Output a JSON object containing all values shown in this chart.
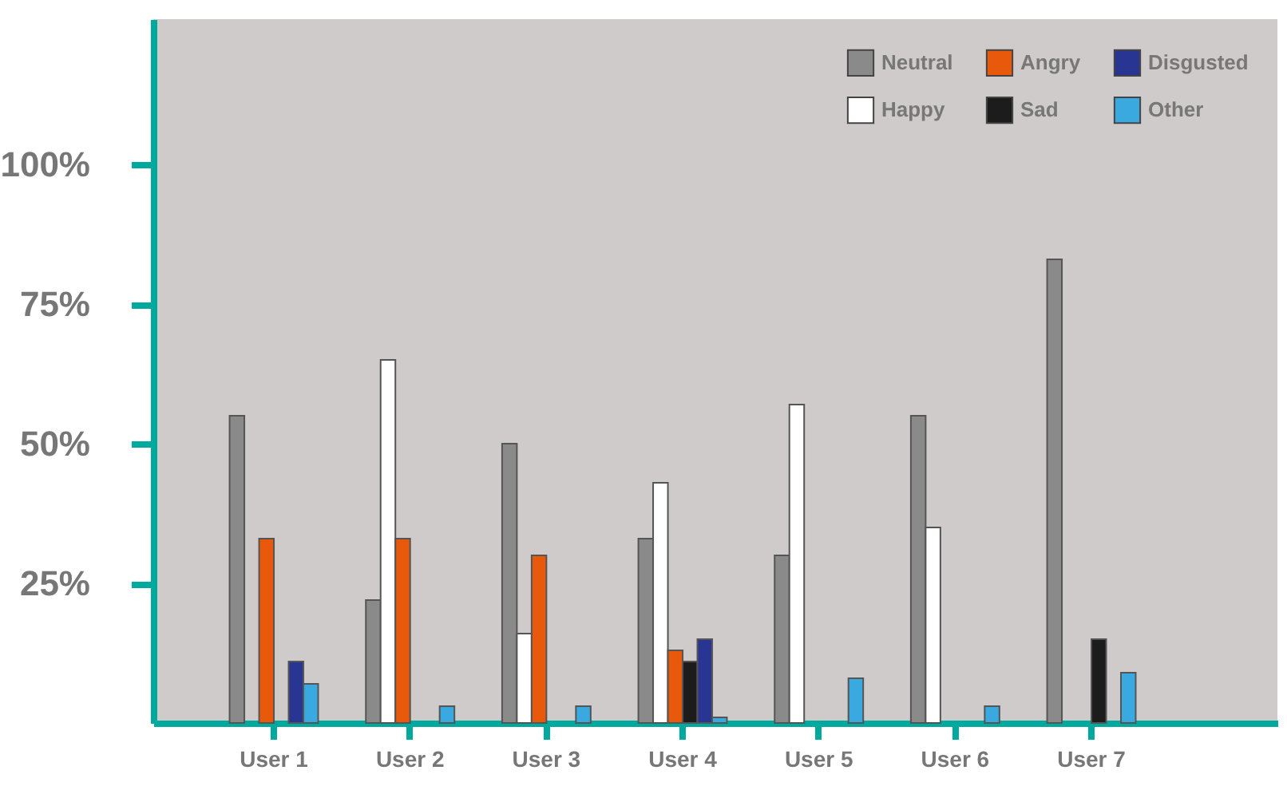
{
  "chart_data": {
    "type": "bar",
    "categories": [
      "User 1",
      "User 2",
      "User 3",
      "User 4",
      "User 5",
      "User 6",
      "User 7"
    ],
    "series": [
      {
        "name": "Neutral",
        "color": "#8a8a8a",
        "values": [
          55,
          22,
          50,
          33,
          30,
          55,
          83
        ]
      },
      {
        "name": "Happy",
        "color": "#ffffff",
        "values": [
          null,
          65,
          16,
          43,
          57,
          35,
          null
        ]
      },
      {
        "name": "Angry",
        "color": "#e8590c",
        "values": [
          33,
          33,
          30,
          13,
          null,
          null,
          null
        ]
      },
      {
        "name": "Sad",
        "color": "#1c1c1c",
        "values": [
          null,
          null,
          null,
          11,
          null,
          null,
          15
        ]
      },
      {
        "name": "Disgusted",
        "color": "#283593",
        "values": [
          11,
          null,
          null,
          15,
          null,
          null,
          null
        ]
      },
      {
        "name": "Other",
        "color": "#3aa9e0",
        "values": [
          7,
          3,
          3,
          1,
          8,
          3,
          9
        ]
      }
    ],
    "ylim": [
      0,
      126
    ],
    "yticks": [
      {
        "value": 25,
        "label": "25%"
      },
      {
        "value": 50,
        "label": "50%"
      },
      {
        "value": 75,
        "label": "75%"
      },
      {
        "value": 100,
        "label": "100%"
      }
    ],
    "grid": false,
    "legend": "top right"
  }
}
